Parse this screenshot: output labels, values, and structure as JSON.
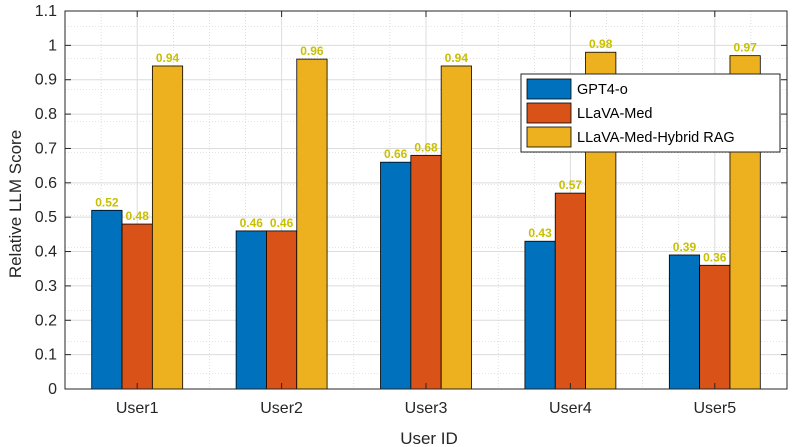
{
  "chart_data": {
    "type": "bar",
    "title": "",
    "xlabel": "User ID",
    "ylabel": "Relative LLM Score",
    "categories": [
      "User1",
      "User2",
      "User3",
      "User4",
      "User5"
    ],
    "series": [
      {
        "name": "GPT4-o",
        "values": [
          0.52,
          0.46,
          0.66,
          0.43,
          0.39
        ],
        "labels": [
          "0.52",
          "0.46",
          "0.66",
          "0.43",
          "0.39"
        ],
        "color": "#0072BD"
      },
      {
        "name": "LLaVA-Med",
        "values": [
          0.48,
          0.46,
          0.68,
          0.57,
          0.36
        ],
        "labels": [
          "0.48",
          "0.46",
          "0.68",
          "0.57",
          "0.36"
        ],
        "color": "#D95319"
      },
      {
        "name": "LLaVA-Med-Hybrid RAG",
        "values": [
          0.94,
          0.96,
          0.94,
          0.98,
          0.97
        ],
        "labels": [
          "0.94",
          "0.96",
          "0.94",
          "0.98",
          "0.97"
        ],
        "color": "#EDB120"
      }
    ],
    "ylim": [
      0,
      1.1
    ],
    "yticks": [
      "0",
      "0.1",
      "0.2",
      "0.3",
      "0.4",
      "0.5",
      "0.6",
      "0.7",
      "0.8",
      "0.9",
      "1",
      "1.1"
    ],
    "data_label_color": "#C9C000",
    "grid": true,
    "legend_position": "top-right"
  }
}
